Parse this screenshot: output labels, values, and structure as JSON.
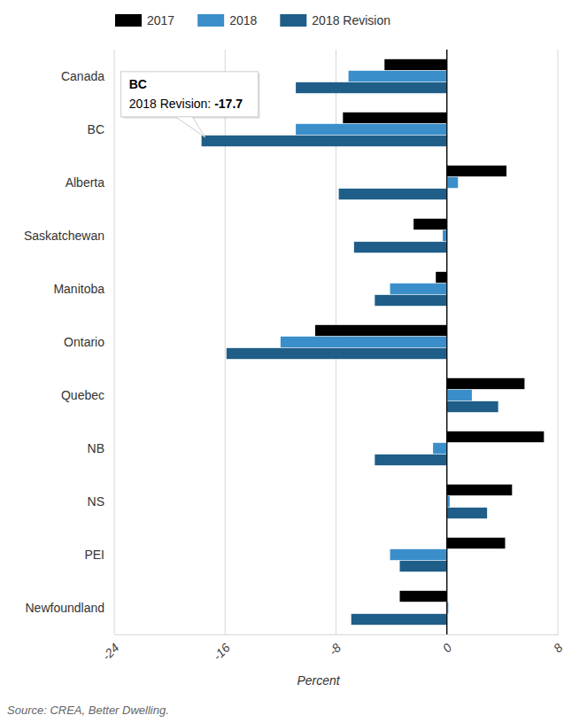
{
  "chart_data": {
    "type": "bar",
    "orientation": "horizontal",
    "categories": [
      "Canada",
      "BC",
      "Alberta",
      "Saskatchewan",
      "Manitoba",
      "Ontario",
      "Quebec",
      "NB",
      "NS",
      "PEI",
      "Newfoundland"
    ],
    "series": [
      {
        "name": "2017",
        "color": "#000000",
        "values": [
          -4.5,
          -7.5,
          4.3,
          -2.4,
          -0.8,
          -9.5,
          5.6,
          7.0,
          4.7,
          4.2,
          -3.4
        ]
      },
      {
        "name": "2018",
        "color": "#3a8fcb",
        "values": [
          -7.1,
          -10.9,
          0.8,
          -0.3,
          -4.1,
          -12.0,
          1.8,
          -1.0,
          0.2,
          -4.1,
          0.1
        ]
      },
      {
        "name": "2018 Revision",
        "color": "#1f5e88",
        "values": [
          -10.9,
          -17.7,
          -7.8,
          -6.7,
          -5.2,
          -15.9,
          3.7,
          -5.2,
          2.9,
          -3.4,
          -6.9
        ]
      }
    ],
    "xlabel": "Percent",
    "xlim": [
      -24,
      8
    ],
    "xticks": [
      -24,
      -16,
      -8,
      0,
      8
    ],
    "grid": true,
    "legend": "top",
    "annotations": [
      {
        "category": "BC",
        "text": "2018 Revision:",
        "value": -17.7
      }
    ],
    "source": "Source: CREA, Better Dwelling."
  }
}
